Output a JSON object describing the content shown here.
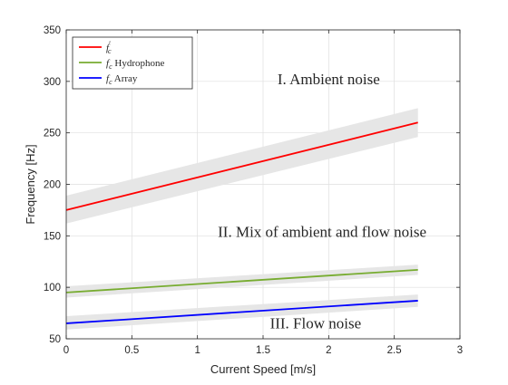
{
  "chart_data": {
    "type": "line",
    "xlabel": "Current Speed [m/s]",
    "ylabel": "Frequency [Hz]",
    "xlim": [
      0,
      3
    ],
    "ylim": [
      50,
      350
    ],
    "x_ticks": [
      0,
      0.5,
      1,
      1.5,
      2,
      2.5,
      3
    ],
    "y_ticks": [
      50,
      100,
      150,
      200,
      250,
      300,
      350
    ],
    "grid": true,
    "legend_position": "top-left",
    "series": [
      {
        "name": "f′c",
        "legend_base": "f",
        "legend_prime": "′",
        "legend_sub": "c",
        "legend_suffix": "",
        "color": "#ff0000",
        "x": [
          0,
          2.68
        ],
        "y": [
          175,
          260
        ],
        "band_lower": [
          162,
          246
        ],
        "band_upper": [
          189,
          274
        ]
      },
      {
        "name": "fc Hydrophone",
        "legend_base": "f",
        "legend_prime": "",
        "legend_sub": "c",
        "legend_suffix": " Hydrophone",
        "color": "#77ac30",
        "x": [
          0,
          2.68
        ],
        "y": [
          95,
          117
        ],
        "band_lower": [
          90,
          112
        ],
        "band_upper": [
          101,
          122
        ]
      },
      {
        "name": "fc Array",
        "legend_base": "f",
        "legend_prime": "",
        "legend_sub": "c",
        "legend_suffix": " Array",
        "color": "#0000ff",
        "x": [
          0,
          2.68
        ],
        "y": [
          65,
          87
        ],
        "band_lower": [
          59,
          81
        ],
        "band_upper": [
          72,
          93
        ]
      }
    ],
    "band_color": "#e6e6e6",
    "annotations": [
      {
        "text": "I. Ambient noise",
        "x": 2.0,
        "y": 297
      },
      {
        "text": "II. Mix of ambient and flow noise",
        "x": 1.95,
        "y": 149
      },
      {
        "text": "III. Flow noise",
        "x": 1.9,
        "y": 60
      }
    ]
  }
}
